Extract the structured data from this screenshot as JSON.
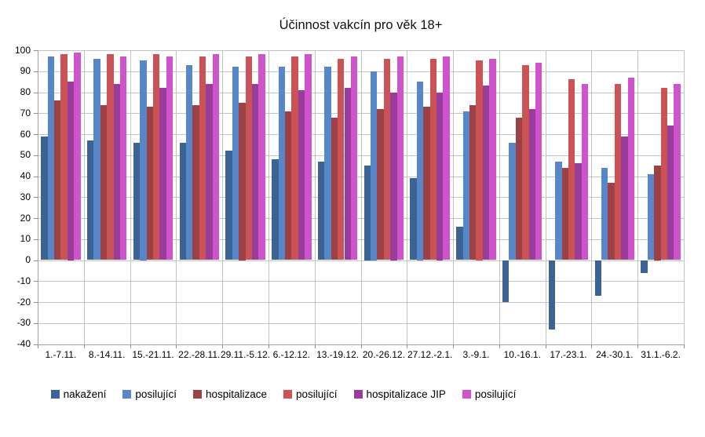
{
  "chart_data": {
    "type": "bar",
    "title": "Účinnost vakcín pro věk 18+",
    "xlabel": "",
    "ylabel": "",
    "ylim": [
      -40,
      100
    ],
    "ytick_step": 10,
    "grid": true,
    "legend_position": "bottom",
    "categories": [
      "1.-7.11.",
      "8.-14.11.",
      "15.-21.11.",
      "22.-28.11.",
      "29.11.-5.12.",
      "6.-12.12.",
      "13.-19.12.",
      "20.-26.12.",
      "27.12.-2.1.",
      "3.-9.1.",
      "10.-16.1.",
      "17.-23.1.",
      "24.-30.1.",
      "31.1.-6.2."
    ],
    "series": [
      {
        "name": "nakažení",
        "color": "#3B6394",
        "values": [
          59,
          57,
          56,
          56,
          52,
          48,
          47,
          45,
          39,
          16,
          -20,
          -33,
          -17,
          -6
        ]
      },
      {
        "name": "posilující",
        "color": "#5787C9",
        "values": [
          97,
          96,
          95,
          93,
          92,
          92,
          92,
          90,
          85,
          71,
          56,
          47,
          44,
          41
        ]
      },
      {
        "name": "hospitalizace",
        "color": "#9C4145",
        "values": [
          76,
          74,
          73,
          74,
          75,
          71,
          68,
          72,
          73,
          74,
          68,
          44,
          37,
          45
        ]
      },
      {
        "name": "posilující",
        "color": "#CB5355",
        "values": [
          98,
          98,
          98,
          97,
          97,
          97,
          96,
          96,
          96,
          95,
          93,
          86,
          84,
          82
        ]
      },
      {
        "name": "hospitalizace JIP",
        "color": "#9A3D9A",
        "values": [
          85,
          84,
          82,
          84,
          84,
          81,
          82,
          80,
          80,
          83,
          72,
          46,
          59,
          64
        ]
      },
      {
        "name": "posilující",
        "color": "#CE53CC",
        "values": [
          99,
          97,
          97,
          98,
          98,
          98,
          97,
          97,
          97,
          96,
          94,
          84,
          87,
          84
        ]
      }
    ],
    "colors": {
      "background": "#FFFFFF",
      "gridline": "#C3C3C3",
      "axis_text": "#000000"
    }
  }
}
